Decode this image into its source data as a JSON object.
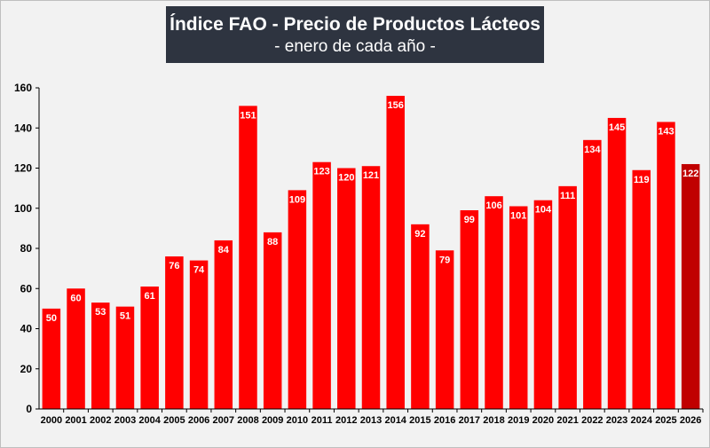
{
  "chart_data": {
    "type": "bar",
    "title": "Índice FAO - Precio de Productos Lácteos",
    "subtitle": "- enero de cada año -",
    "xlabel": "",
    "ylabel": "",
    "ylim": [
      0,
      160
    ],
    "yticks": [
      0,
      20,
      40,
      60,
      80,
      100,
      120,
      140,
      160
    ],
    "grid": false,
    "legend": "none",
    "categories": [
      "2000",
      "2001",
      "2002",
      "2003",
      "2004",
      "2005",
      "2006",
      "2007",
      "2008",
      "2009",
      "2010",
      "2011",
      "2012",
      "2013",
      "2014",
      "2015",
      "2016",
      "2017",
      "2018",
      "2019",
      "2020",
      "2021",
      "2022",
      "2023",
      "2024",
      "2025",
      "2026"
    ],
    "values": [
      50,
      60,
      53,
      51,
      61,
      76,
      74,
      84,
      151,
      88,
      109,
      123,
      120,
      121,
      156,
      92,
      79,
      99,
      106,
      101,
      104,
      111,
      134,
      145,
      119,
      143,
      122
    ],
    "colors": {
      "bar": "#ff0000",
      "highlight_bar": "#c00000",
      "label_text": "#ffffff"
    },
    "highlight_category": "2026"
  }
}
